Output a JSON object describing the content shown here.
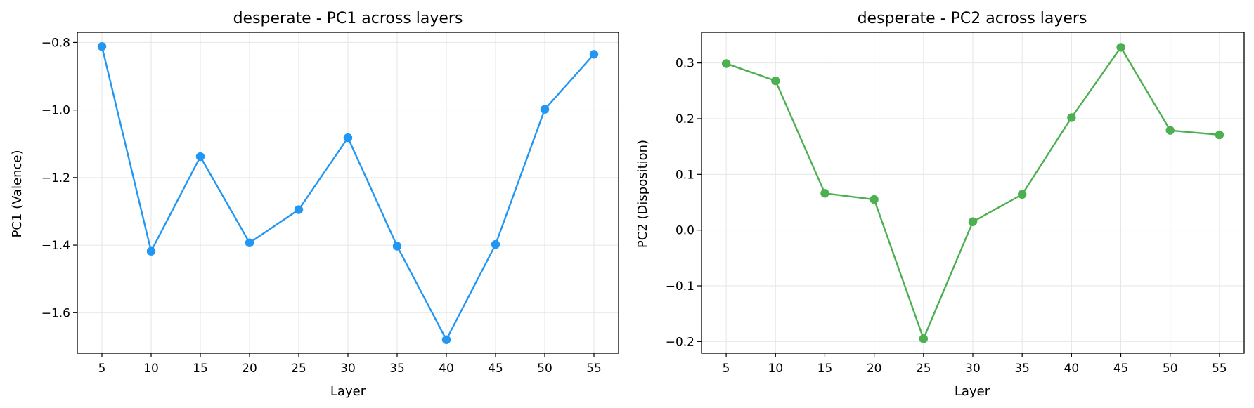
{
  "chart_data": [
    {
      "type": "line",
      "title": "desperate - PC1 across layers",
      "xlabel": "Layer",
      "ylabel": "PC1 (Valence)",
      "x": [
        5,
        10,
        15,
        20,
        25,
        30,
        35,
        40,
        45,
        50,
        55
      ],
      "series": [
        {
          "values": [
            -0.812,
            -1.418,
            -1.138,
            -1.393,
            -1.295,
            -1.082,
            -1.403,
            -1.68,
            -1.398,
            -0.998,
            -0.835
          ]
        }
      ],
      "xticks": [
        "5",
        "10",
        "15",
        "20",
        "25",
        "30",
        "35",
        "40",
        "45",
        "50",
        "55"
      ],
      "yticks": [
        -0.8,
        -1.0,
        -1.2,
        -1.4,
        -1.6
      ],
      "ytick_labels": [
        "−0.8",
        "−1.0",
        "−1.2",
        "−1.4",
        "−1.6"
      ],
      "xlim": [
        2.5,
        57.5
      ],
      "ylim": [
        -1.72,
        -0.77
      ],
      "grid": true,
      "color": "#2196F3"
    },
    {
      "type": "line",
      "title": "desperate - PC2 across layers",
      "xlabel": "Layer",
      "ylabel": "PC2 (Disposition)",
      "x": [
        5,
        10,
        15,
        20,
        25,
        30,
        35,
        40,
        45,
        50,
        55
      ],
      "series": [
        {
          "values": [
            0.299,
            0.268,
            0.066,
            0.055,
            -0.195,
            0.015,
            0.064,
            0.202,
            0.328,
            0.179,
            0.171
          ]
        }
      ],
      "xticks": [
        "5",
        "10",
        "15",
        "20",
        "25",
        "30",
        "35",
        "40",
        "45",
        "50",
        "55"
      ],
      "yticks": [
        0.3,
        0.2,
        0.1,
        0.0,
        -0.1,
        -0.2
      ],
      "ytick_labels": [
        "0.3",
        "0.2",
        "0.1",
        "0.0",
        "−0.1",
        "−0.2"
      ],
      "xlim": [
        2.5,
        57.5
      ],
      "ylim": [
        -0.221,
        0.355
      ],
      "grid": true,
      "color": "#4CAF50"
    }
  ]
}
